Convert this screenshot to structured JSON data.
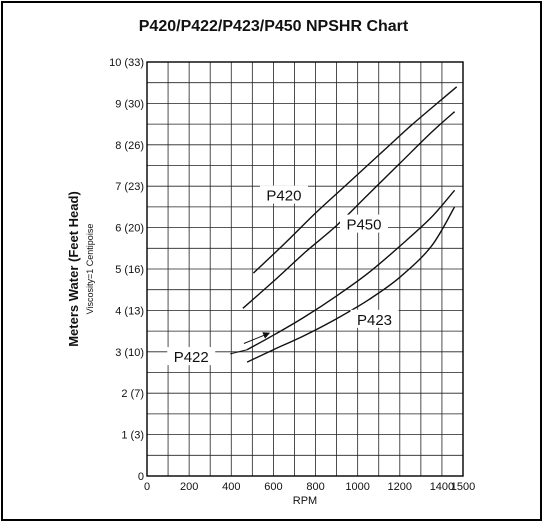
{
  "chart_data": {
    "type": "line",
    "title": "P420/P422/P423/P450 NPSHR Chart",
    "xlabel": "RPM",
    "ylabel": "Meters Water (Feet Head)",
    "ylabel_sub": "Viscosity=1 Centipoise",
    "xlim": [
      0,
      1500
    ],
    "ylim": [
      0,
      10
    ],
    "grid": true,
    "xticks": [
      "0",
      "200",
      "400",
      "600",
      "800",
      "1000",
      "1200",
      "1400",
      "1500"
    ],
    "xtick_values": [
      0,
      200,
      400,
      600,
      800,
      1000,
      1200,
      1400,
      1500
    ],
    "yticks": [
      "0",
      "1 (3)",
      "2 (7)",
      "3 (10)",
      "4 (13)",
      "5 (16)",
      "6 (20)",
      "7 (23)",
      "8 (26)",
      "9 (30)",
      "10 (33)"
    ],
    "ytick_values": [
      0,
      1,
      2,
      3,
      4,
      5,
      6,
      7,
      8,
      9,
      10
    ],
    "series": [
      {
        "name": "P420",
        "x": [
          505,
          650,
          800,
          950,
          1100,
          1250,
          1400,
          1470
        ],
        "y": [
          4.9,
          5.6,
          6.35,
          7.05,
          7.75,
          8.45,
          9.1,
          9.4
        ]
      },
      {
        "name": "P450",
        "x": [
          455,
          600,
          750,
          900,
          1050,
          1200,
          1350,
          1460
        ],
        "y": [
          4.05,
          4.7,
          5.4,
          6.05,
          6.8,
          7.55,
          8.3,
          8.8
        ]
      },
      {
        "name": "P422",
        "x": [
          475,
          600,
          750,
          900,
          1050,
          1200,
          1350,
          1460
        ],
        "y": [
          3.05,
          3.4,
          3.85,
          4.35,
          4.9,
          5.55,
          6.25,
          6.9
        ]
      },
      {
        "name": "P423",
        "x": [
          475,
          600,
          750,
          900,
          1050,
          1200,
          1350,
          1460
        ],
        "y": [
          2.75,
          3.05,
          3.4,
          3.8,
          4.25,
          4.8,
          5.55,
          6.5
        ]
      }
    ],
    "annotations": [
      {
        "text": "P420",
        "x": 650,
        "y": 6.7
      },
      {
        "text": "P450",
        "x": 1030,
        "y": 6.0
      },
      {
        "text": "P423",
        "x": 1080,
        "y": 3.7
      },
      {
        "text": "P422",
        "x": 210,
        "y": 2.8
      }
    ],
    "colors": {
      "line": "#111111",
      "grid": "#222222",
      "background": "#ffffff"
    }
  }
}
